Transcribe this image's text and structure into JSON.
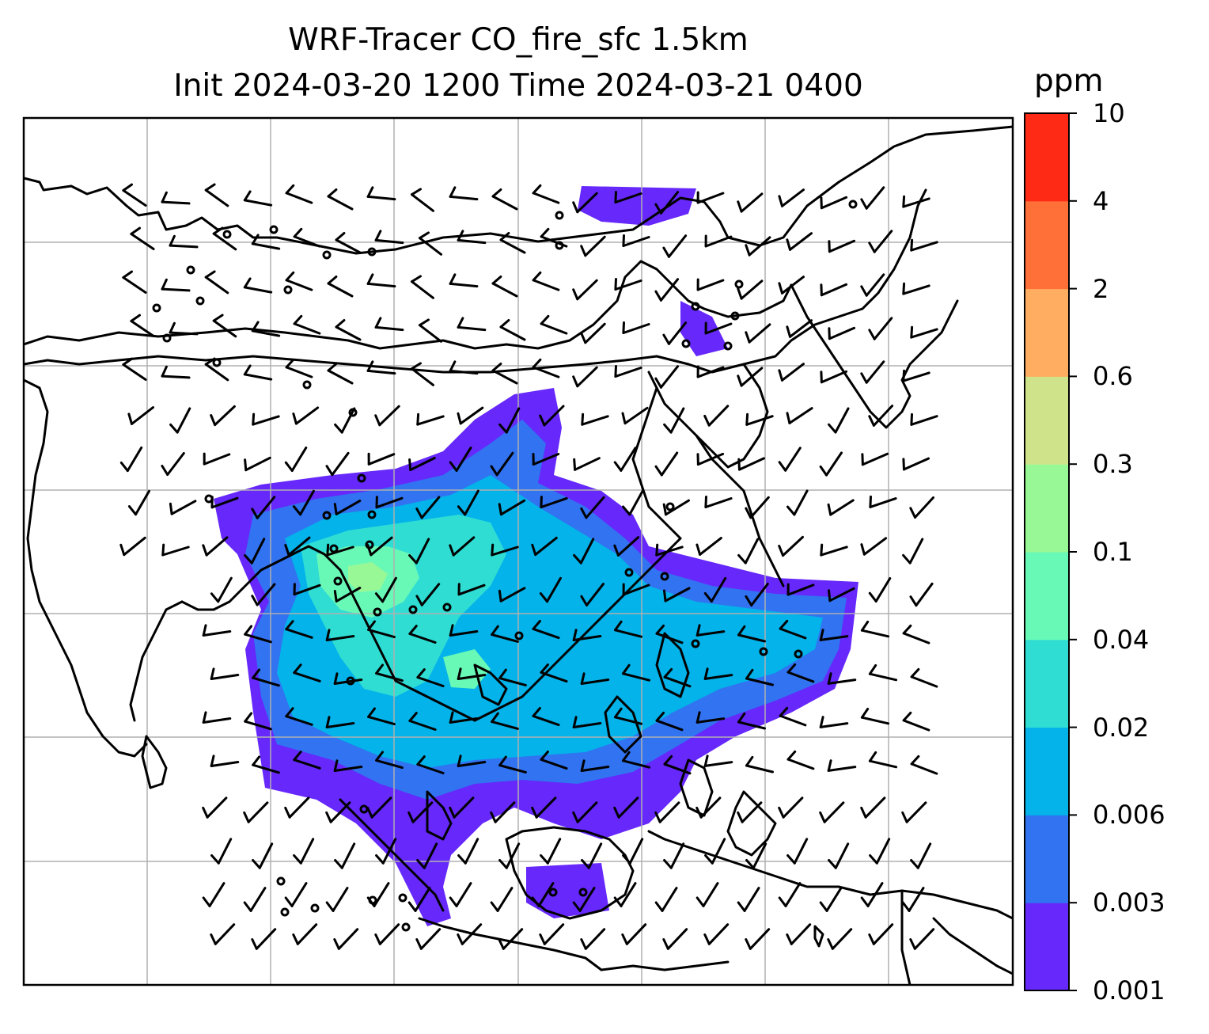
{
  "title": {
    "line1": "WRF-Tracer CO_fire_sfc 1.5km",
    "line2": "Init 2024-03-20 1200 Time 2024-03-21 0400"
  },
  "colorbar": {
    "unit": "ppm",
    "levels": [
      "0.001",
      "0.003",
      "0.006",
      "0.02",
      "0.04",
      "0.1",
      "0.3",
      "0.6",
      "2",
      "4",
      "10"
    ],
    "colors": [
      "#6628fb",
      "#3173f1",
      "#03b3e9",
      "#2fddd3",
      "#69f9b7",
      "#99f896",
      "#cfe38a",
      "#fead61",
      "#ff7039",
      "#ff2a15"
    ]
  },
  "map": {
    "coastline_color": "#000000",
    "gridline_color": "#b0b0b0",
    "wind_barb_color": "#000000",
    "plume_colors": {
      "outer": "#6628fb",
      "low": "#3173f1",
      "mid": "#03b3e9",
      "mid_high": "#2fddd3",
      "high": "#69f9b7",
      "peak": "#99f896"
    }
  }
}
